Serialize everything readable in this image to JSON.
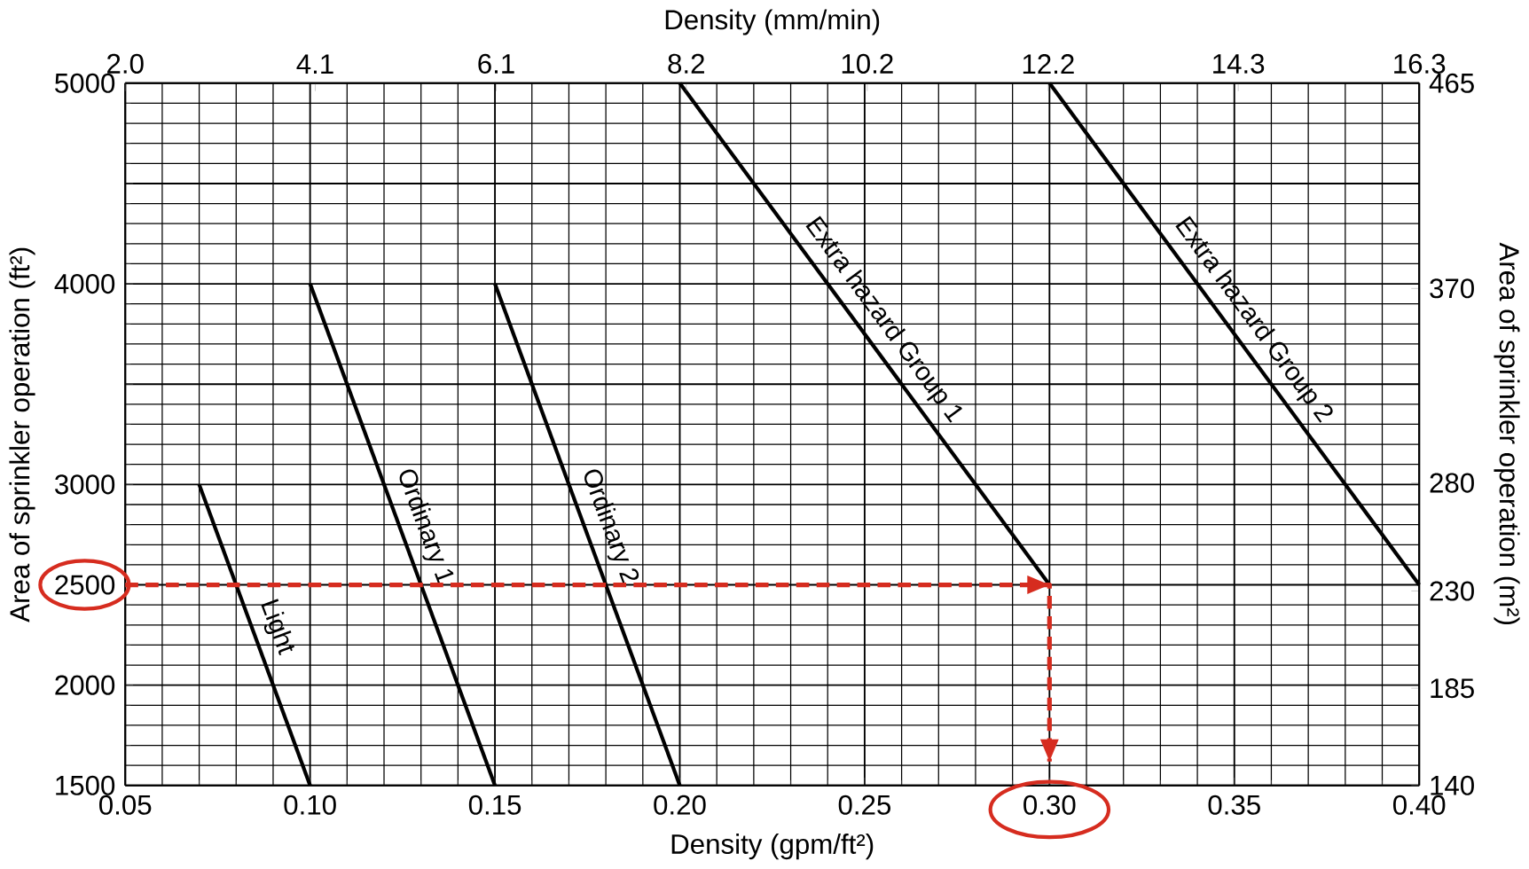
{
  "chart_data": {
    "type": "line",
    "xlabel": "Density (gpm/ft²)",
    "ylabel": "Area of sprinkler operation (ft²)",
    "x2label": "Density (mm/min)",
    "y2label": "Area of sprinkler operation (m²)",
    "xlim": [
      0.05,
      0.4
    ],
    "xticks": [
      {
        "value": 0.05,
        "label": "0.05"
      },
      {
        "value": 0.1,
        "label": "0.10"
      },
      {
        "value": 0.15,
        "label": "0.15"
      },
      {
        "value": 0.2,
        "label": "0.20"
      },
      {
        "value": 0.25,
        "label": "0.25"
      },
      {
        "value": 0.3,
        "label": "0.30"
      },
      {
        "value": 0.35,
        "label": "0.35"
      },
      {
        "value": 0.4,
        "label": "0.40"
      }
    ],
    "ylim": [
      1500,
      5000
    ],
    "yticks": [
      1500,
      2000,
      2500,
      3000,
      {
        "value": 3500,
        "label": null
      },
      4000,
      {
        "value": 4500,
        "label": null
      },
      5000
    ],
    "x2lim": [
      2.0,
      16.3
    ],
    "x2ticks": [
      {
        "value": 2.0,
        "label": "2.0"
      },
      4.1,
      6.1,
      8.2,
      10.2,
      12.2,
      14.3,
      16.3
    ],
    "y2lim": [
      140,
      465
    ],
    "y2ticks": [
      140,
      185,
      230,
      280,
      370,
      465
    ],
    "grid": true,
    "series": [
      {
        "name": "Light",
        "color": "#000000",
        "line_style": "solid",
        "x": [
          0.07,
          0.1
        ],
        "values": [
          3000,
          1500
        ]
      },
      {
        "name": "Ordinary 1",
        "color": "#000000",
        "line_style": "solid",
        "x": [
          0.1,
          0.15
        ],
        "values": [
          4000,
          1500
        ]
      },
      {
        "name": "Ordinary 2",
        "color": "#000000",
        "line_style": "solid",
        "x": [
          0.15,
          0.2
        ],
        "values": [
          4000,
          1500
        ]
      },
      {
        "name": "Extra hazard Group 1",
        "color": "#000000",
        "line_style": "solid",
        "x": [
          0.2,
          0.3
        ],
        "values": [
          5000,
          2500
        ]
      },
      {
        "name": "Extra hazard Group 2",
        "color": "#000000",
        "line_style": "solid",
        "x": [
          0.3,
          0.4
        ],
        "values": [
          5000,
          2500
        ]
      },
      {
        "color": "#d62c1f",
        "line_style": "dashed",
        "x": [
          0.05,
          0.3,
          0.3
        ],
        "values": [
          2500,
          2500,
          1620
        ]
      }
    ]
  }
}
